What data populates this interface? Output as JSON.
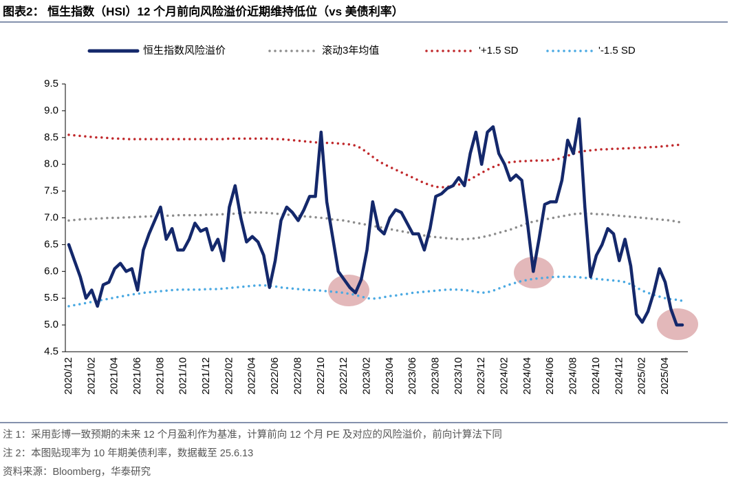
{
  "chart_data": {
    "type": "line",
    "title": "图表2： 恒生指数（HSI）12 个月前向风险溢价近期维持低位（vs 美债利率）",
    "notes": [
      "注 1：采用彭博一致预期的未来 12 个月盈利作为基准，计算前向 12 个月 PE 及对应的风险溢价，前向计算法下同",
      "注 2：本图贴现率为 10 年期美债利率，数据截至 25.6.13",
      "资料来源：Bloomberg，华泰研究"
    ],
    "categories": [
      "2020/12",
      null,
      null,
      null,
      "2021/02",
      null,
      null,
      null,
      "2021/04",
      null,
      null,
      null,
      "2021/06",
      null,
      null,
      null,
      "2021/08",
      null,
      null,
      null,
      "2021/10",
      null,
      null,
      null,
      "2021/12",
      null,
      null,
      null,
      "2022/02",
      null,
      null,
      null,
      "2022/04",
      null,
      null,
      null,
      "2022/06",
      null,
      null,
      null,
      "2022/08",
      null,
      null,
      null,
      "2022/10",
      null,
      null,
      null,
      "2022/12",
      null,
      null,
      null,
      "2023/02",
      null,
      null,
      null,
      "2023/04",
      null,
      null,
      null,
      "2023/06",
      null,
      null,
      null,
      "2023/08",
      null,
      null,
      null,
      "2023/10",
      null,
      null,
      null,
      "2023/12",
      null,
      null,
      null,
      "2024/02",
      null,
      null,
      null,
      "2024/04",
      null,
      null,
      null,
      "2024/06",
      null,
      null,
      null,
      "2024/08",
      null,
      null,
      null,
      "2024/10",
      null,
      null,
      null,
      "2024/12",
      null,
      null,
      null,
      "2025/02",
      null,
      null,
      null,
      "2025/04",
      null,
      null,
      null
    ],
    "series": [
      {
        "name": "恒生指数风险溢价",
        "color": "#14286b",
        "line_style": "solid",
        "values": [
          6.5,
          6.2,
          5.9,
          5.5,
          5.65,
          5.35,
          5.75,
          5.8,
          6.05,
          6.15,
          6.0,
          6.05,
          5.65,
          6.4,
          6.7,
          6.95,
          7.2,
          6.6,
          6.8,
          6.4,
          6.4,
          6.6,
          6.9,
          6.75,
          6.8,
          6.4,
          6.6,
          6.2,
          7.2,
          7.6,
          7.0,
          6.55,
          6.65,
          6.55,
          6.3,
          5.7,
          6.2,
          6.95,
          7.2,
          7.1,
          6.95,
          7.15,
          7.4,
          7.4,
          8.6,
          7.3,
          6.65,
          6.0,
          5.85,
          5.7,
          5.6,
          5.85,
          6.4,
          7.3,
          6.8,
          6.7,
          7.0,
          7.15,
          7.1,
          6.9,
          6.7,
          6.7,
          6.4,
          6.8,
          7.4,
          7.45,
          7.55,
          7.6,
          7.75,
          7.6,
          8.2,
          8.6,
          8.0,
          8.6,
          8.7,
          8.2,
          8.0,
          7.7,
          7.8,
          7.7,
          6.9,
          6.0,
          6.6,
          7.25,
          7.3,
          7.3,
          7.7,
          8.45,
          8.2,
          8.85,
          7.2,
          5.9,
          6.3,
          6.5,
          6.8,
          6.7,
          6.2,
          6.6,
          6.1,
          5.2,
          5.05,
          5.25,
          5.6,
          6.05,
          5.8,
          5.3,
          5.0,
          5.0
        ]
      },
      {
        "name": "滚动3年均值",
        "color": "#8c8c8c",
        "line_style": "dotted",
        "values": [
          6.95,
          6.96,
          6.97,
          6.98,
          6.98,
          6.99,
          6.99,
          7.0,
          7.0,
          7.0,
          7.01,
          7.01,
          7.02,
          7.02,
          7.03,
          7.03,
          7.04,
          7.04,
          7.04,
          7.05,
          7.05,
          7.05,
          7.05,
          7.05,
          7.06,
          7.06,
          7.06,
          7.07,
          7.07,
          7.08,
          7.09,
          7.1,
          7.1,
          7.1,
          7.1,
          7.09,
          7.08,
          7.07,
          7.06,
          7.05,
          7.04,
          7.03,
          7.02,
          7.01,
          7.0,
          6.99,
          6.97,
          6.96,
          6.95,
          6.93,
          6.91,
          6.89,
          6.87,
          6.85,
          6.83,
          6.81,
          6.79,
          6.77,
          6.75,
          6.73,
          6.71,
          6.69,
          6.67,
          6.65,
          6.64,
          6.63,
          6.62,
          6.61,
          6.6,
          6.6,
          6.61,
          6.62,
          6.64,
          6.66,
          6.69,
          6.72,
          6.75,
          6.78,
          6.82,
          6.86,
          6.9,
          6.93,
          6.95,
          6.97,
          6.99,
          7.01,
          7.03,
          7.05,
          7.07,
          7.08,
          7.08,
          7.08,
          7.07,
          7.07,
          7.06,
          7.05,
          7.04,
          7.03,
          7.02,
          7.01,
          7.0,
          6.99,
          6.98,
          6.97,
          6.96,
          6.95,
          6.93,
          6.91
        ]
      },
      {
        "name": "'+1.5 SD",
        "color": "#c0282b",
        "line_style": "dotted",
        "values": [
          8.55,
          8.54,
          8.53,
          8.52,
          8.51,
          8.5,
          8.5,
          8.49,
          8.48,
          8.48,
          8.47,
          8.47,
          8.47,
          8.47,
          8.47,
          8.47,
          8.47,
          8.47,
          8.47,
          8.47,
          8.47,
          8.47,
          8.47,
          8.47,
          8.47,
          8.47,
          8.47,
          8.47,
          8.48,
          8.48,
          8.48,
          8.48,
          8.48,
          8.48,
          8.48,
          8.48,
          8.47,
          8.47,
          8.46,
          8.45,
          8.44,
          8.43,
          8.42,
          8.41,
          8.4,
          8.4,
          8.4,
          8.39,
          8.38,
          8.37,
          8.35,
          8.3,
          8.22,
          8.14,
          8.06,
          8.0,
          7.95,
          7.9,
          7.85,
          7.8,
          7.75,
          7.7,
          7.65,
          7.61,
          7.58,
          7.57,
          7.58,
          7.6,
          7.62,
          7.66,
          7.72,
          7.78,
          7.84,
          7.9,
          7.95,
          7.99,
          8.02,
          8.04,
          8.05,
          8.06,
          8.06,
          8.07,
          8.07,
          8.07,
          8.08,
          8.09,
          8.12,
          8.16,
          8.2,
          8.23,
          8.25,
          8.26,
          8.27,
          8.28,
          8.28,
          8.29,
          8.29,
          8.3,
          8.3,
          8.31,
          8.31,
          8.32,
          8.32,
          8.33,
          8.34,
          8.35,
          8.36,
          8.37
        ]
      },
      {
        "name": "'-1.5 SD",
        "color": "#4aa9e2",
        "line_style": "dotted",
        "values": [
          5.35,
          5.37,
          5.39,
          5.41,
          5.43,
          5.45,
          5.47,
          5.49,
          5.51,
          5.53,
          5.55,
          5.57,
          5.58,
          5.6,
          5.61,
          5.62,
          5.63,
          5.64,
          5.65,
          5.66,
          5.66,
          5.66,
          5.66,
          5.66,
          5.67,
          5.67,
          5.67,
          5.68,
          5.69,
          5.7,
          5.71,
          5.72,
          5.73,
          5.74,
          5.74,
          5.73,
          5.72,
          5.7,
          5.69,
          5.68,
          5.67,
          5.66,
          5.65,
          5.65,
          5.64,
          5.63,
          5.62,
          5.61,
          5.6,
          5.58,
          5.56,
          5.53,
          5.5,
          5.49,
          5.5,
          5.52,
          5.54,
          5.55,
          5.57,
          5.58,
          5.6,
          5.61,
          5.62,
          5.63,
          5.64,
          5.65,
          5.66,
          5.66,
          5.66,
          5.65,
          5.64,
          5.62,
          5.6,
          5.61,
          5.64,
          5.68,
          5.72,
          5.76,
          5.79,
          5.82,
          5.84,
          5.86,
          5.87,
          5.88,
          5.89,
          5.9,
          5.9,
          5.9,
          5.9,
          5.89,
          5.88,
          5.87,
          5.86,
          5.85,
          5.84,
          5.83,
          5.82,
          5.8,
          5.76,
          5.7,
          5.64,
          5.6,
          5.56,
          5.53,
          5.5,
          5.48,
          5.47,
          5.45
        ]
      }
    ],
    "ylim": [
      4.5,
      9.5
    ],
    "yticks": [
      4.5,
      {
        "value": 5,
        "label": "5.0"
      },
      5.5,
      {
        "value": 6,
        "label": "6.0"
      },
      6.5,
      {
        "value": 7,
        "label": "7.0"
      },
      7.5,
      {
        "value": 8,
        "label": "8.0"
      },
      8.5,
      {
        "value": 9,
        "label": "9.0"
      },
      9.5
    ],
    "grid": false,
    "legend_position": "top"
  }
}
